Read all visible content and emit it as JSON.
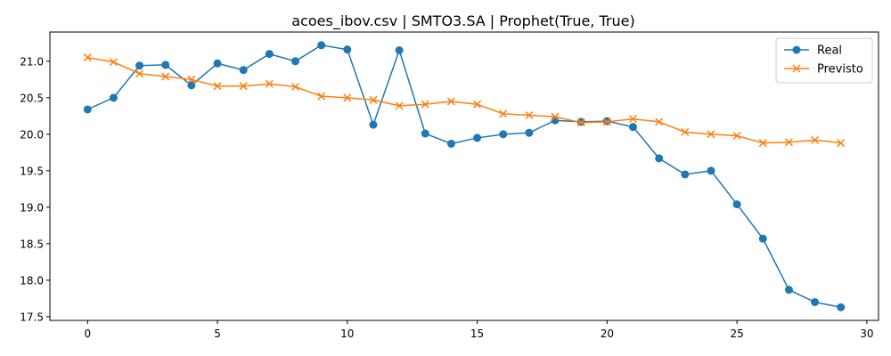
{
  "chart_data": {
    "type": "line",
    "title": "acoes_ibov.csv | SMTO3.SA | Prophet(True, True)",
    "xlabel": "",
    "ylabel": "",
    "xlim": [
      -1.45,
      30.45
    ],
    "ylim": [
      17.45,
      21.4
    ],
    "xticks": [
      0,
      5,
      10,
      15,
      20,
      25,
      30
    ],
    "yticks": [
      17.5,
      18.0,
      18.5,
      19.0,
      19.5,
      20.0,
      20.5,
      21.0
    ],
    "grid": false,
    "legend": "top-right",
    "x": [
      0,
      1,
      2,
      3,
      4,
      5,
      6,
      7,
      8,
      9,
      10,
      11,
      12,
      13,
      14,
      15,
      16,
      17,
      18,
      19,
      20,
      21,
      22,
      23,
      24,
      25,
      26,
      27,
      28,
      29
    ],
    "series": [
      {
        "name": "Real",
        "color": "#1f77b4",
        "marker": "circle",
        "values": [
          20.34,
          20.5,
          20.94,
          20.95,
          20.67,
          20.97,
          20.88,
          21.1,
          21.0,
          21.22,
          21.16,
          20.13,
          21.15,
          20.01,
          19.87,
          19.95,
          20.0,
          20.02,
          20.19,
          20.17,
          20.18,
          20.1,
          19.67,
          19.45,
          19.5,
          19.04,
          18.57,
          17.87,
          17.7,
          17.63
        ]
      },
      {
        "name": "Previsto",
        "color": "#ff7f0e",
        "marker": "x",
        "values": [
          21.05,
          20.99,
          20.83,
          20.79,
          20.75,
          20.66,
          20.66,
          20.69,
          20.65,
          20.52,
          20.5,
          20.47,
          20.39,
          20.41,
          20.45,
          20.41,
          20.28,
          20.26,
          20.24,
          20.16,
          20.17,
          20.21,
          20.17,
          20.03,
          20.0,
          19.98,
          19.88,
          19.89,
          19.92,
          19.88
        ]
      }
    ]
  }
}
